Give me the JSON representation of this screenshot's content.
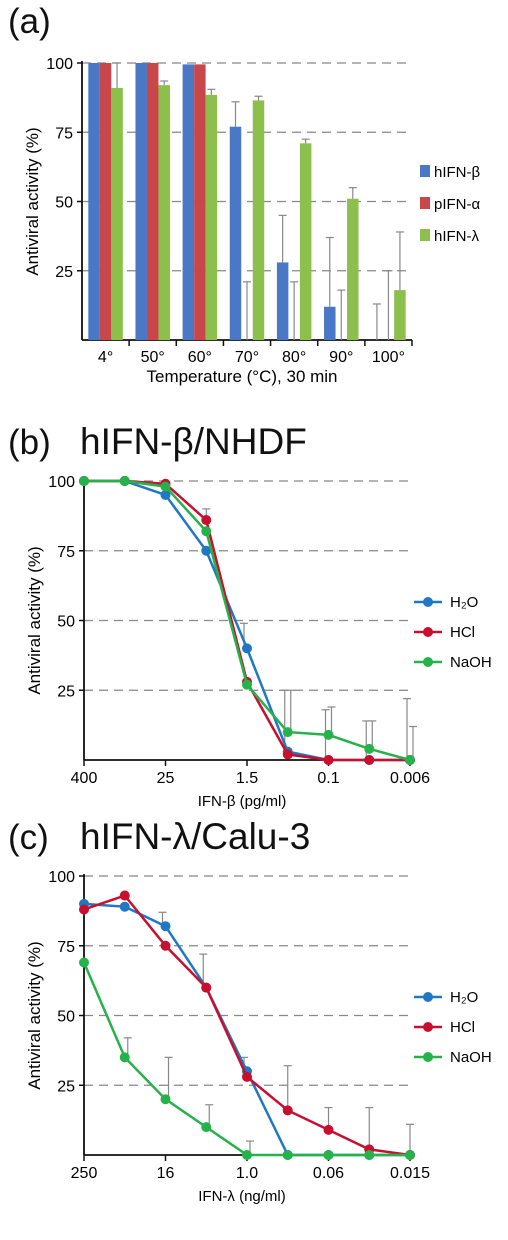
{
  "panels": {
    "a": {
      "label": "(a)",
      "title": ""
    },
    "b": {
      "label": "(b)",
      "title": "hIFN-β/NHDF"
    },
    "c": {
      "label": "(c)",
      "title": "hIFN-λ/Calu-3"
    }
  },
  "colors": {
    "blue": "#4a78c6",
    "red": "#c8474a",
    "green": "#8dbf4c",
    "line_blue": "#1f78c1",
    "line_red": "#c8102e",
    "line_green": "#26b24b"
  },
  "chart_data": [
    {
      "type": "bar",
      "xlabel": "Temperature (°C), 30 min",
      "ylabel": "Antiviral activity (%)",
      "ylim": [
        0,
        100
      ],
      "yticks": [
        "100",
        "75",
        "50",
        "25"
      ],
      "grid": true,
      "legend_position": "right",
      "categories": [
        "4°",
        "50°",
        "60°",
        "70°",
        "80°",
        "90°",
        "100°"
      ],
      "series": [
        {
          "name": "hIFN-β",
          "values": [
            100,
            100,
            99.5,
            77,
            28,
            12,
            0
          ],
          "error": [
            0,
            0,
            0,
            9,
            17,
            25,
            13
          ]
        },
        {
          "name": "pIFN-α",
          "values": [
            100,
            100,
            99.5,
            0,
            0,
            0,
            0
          ],
          "error": [
            0,
            0,
            0,
            21,
            21,
            18,
            25
          ]
        },
        {
          "name": "hIFN-λ",
          "values": [
            91,
            92,
            88.5,
            86.5,
            71,
            51,
            18
          ],
          "error": [
            9,
            1.5,
            2,
            1.5,
            1.5,
            4,
            21
          ]
        }
      ]
    },
    {
      "type": "line",
      "title": "hIFN-β/NHDF",
      "xlabel": "IFN-β (pg/ml)",
      "ylabel": "Antiviral activity (%)",
      "ylim": [
        0,
        100
      ],
      "yticks": [
        "100",
        "75",
        "50",
        "25"
      ],
      "xtick_labels": [
        "400",
        "25",
        "1.5",
        "0.1",
        "0.006"
      ],
      "grid": true,
      "legend_position": "right",
      "series": [
        {
          "name": "H₂O",
          "x": [
            0,
            1,
            2,
            3,
            4,
            5,
            6,
            7,
            8
          ],
          "y": [
            100,
            100,
            95,
            75,
            40,
            3,
            0,
            0,
            0
          ],
          "error": [
            0,
            0,
            0,
            0,
            9,
            22,
            18,
            14,
            22
          ]
        },
        {
          "name": "HCl",
          "x": [
            0,
            1,
            2,
            3,
            4,
            5,
            6,
            7,
            8
          ],
          "y": [
            100,
            100,
            99,
            86,
            28,
            2,
            0,
            0,
            0
          ],
          "error": [
            0,
            0,
            0,
            4,
            0,
            0,
            0,
            0,
            0
          ]
        },
        {
          "name": "NaOH",
          "x": [
            0,
            1,
            2,
            3,
            4,
            5,
            6,
            7,
            8
          ],
          "y": [
            100,
            100,
            98,
            82,
            27,
            10,
            9,
            4,
            0
          ],
          "error": [
            0,
            0,
            0,
            0,
            0,
            15,
            10,
            10,
            12
          ]
        }
      ]
    },
    {
      "type": "line",
      "title": "hIFN-λ/Calu-3",
      "xlabel": "IFN-λ (ng/ml)",
      "ylabel": "Antiviral activity (%)",
      "ylim": [
        0,
        100
      ],
      "yticks": [
        "100",
        "75",
        "50",
        "25"
      ],
      "xtick_labels": [
        "250",
        "16",
        "1.0",
        "0.06",
        "0.015"
      ],
      "grid": true,
      "legend_position": "right",
      "series": [
        {
          "name": "H₂O",
          "x": [
            0,
            1,
            2,
            3,
            4,
            5,
            6,
            7,
            8
          ],
          "y": [
            90,
            89,
            82,
            60,
            30,
            0,
            0,
            0,
            0
          ],
          "error": [
            0,
            0,
            5,
            12,
            5,
            0,
            0,
            0,
            0
          ]
        },
        {
          "name": "HCl",
          "x": [
            0,
            1,
            2,
            3,
            4,
            5,
            6,
            7,
            8
          ],
          "y": [
            88,
            93,
            75,
            60,
            28,
            16,
            9,
            2,
            0
          ],
          "error": [
            0,
            0,
            0,
            0,
            0,
            16,
            8,
            15,
            11
          ]
        },
        {
          "name": "NaOH",
          "x": [
            0,
            1,
            2,
            3,
            4,
            5,
            6,
            7,
            8
          ],
          "y": [
            69,
            35,
            20,
            10,
            0,
            0,
            0,
            0,
            0
          ],
          "error": [
            0,
            7,
            15,
            8,
            5,
            0,
            0,
            0,
            0
          ]
        }
      ]
    }
  ]
}
